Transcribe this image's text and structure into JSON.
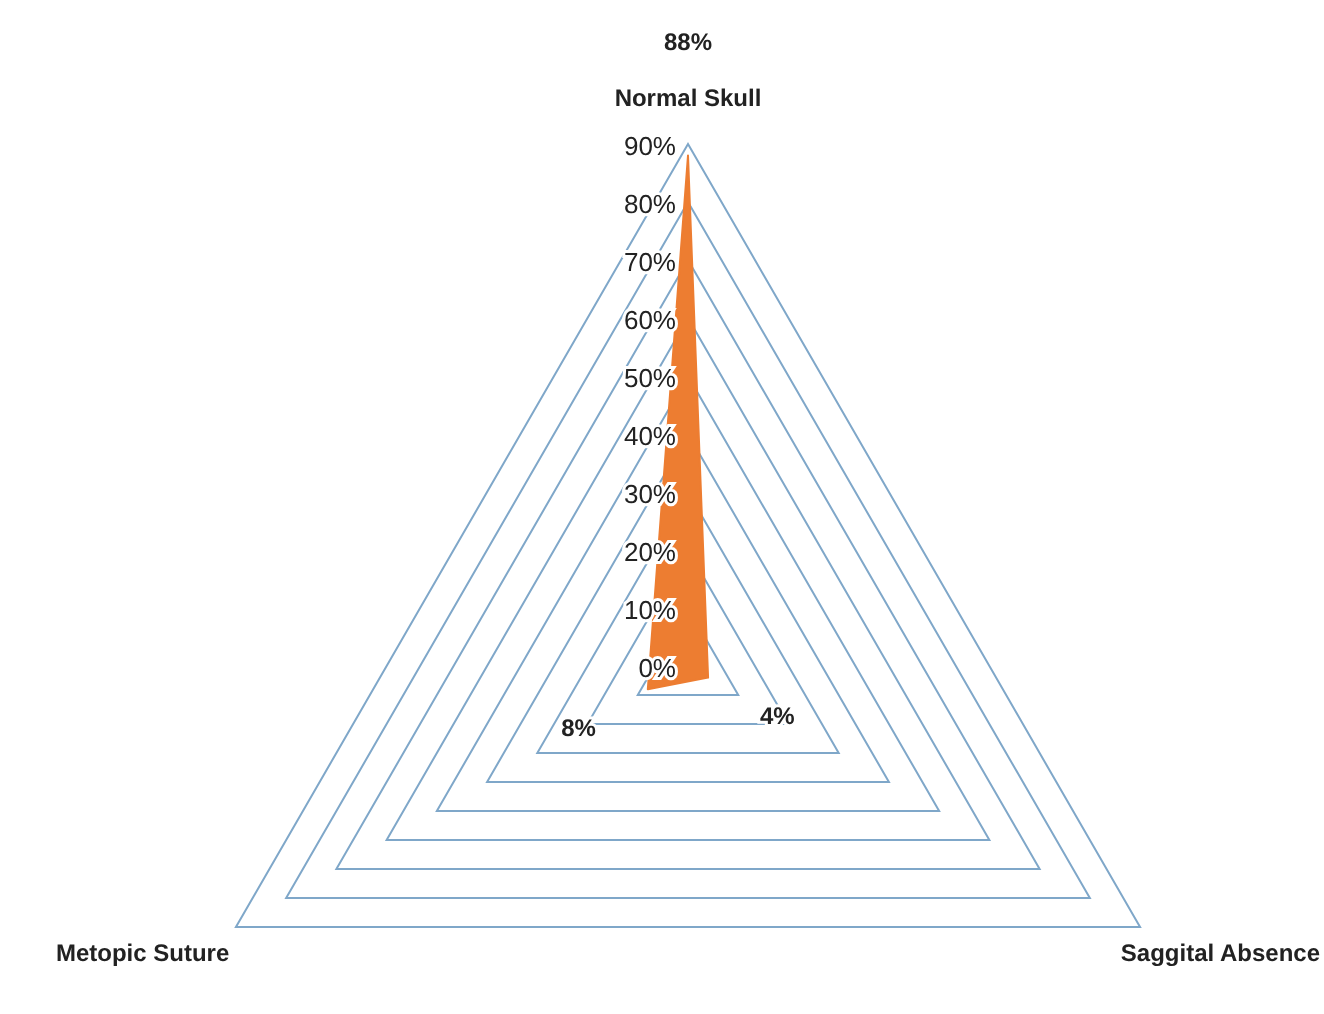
{
  "chart_data": {
    "type": "radar",
    "categories": [
      "Normal Skull",
      "Saggital Absence",
      "Metopic Suture"
    ],
    "series": [
      {
        "color": "#ed7d31",
        "values": [
          88,
          4,
          8
        ]
      }
    ],
    "ylim": [
      0,
      90
    ],
    "yticks": [
      {
        "value": 0,
        "label": "0%"
      },
      {
        "value": 10,
        "label": "10%"
      },
      {
        "value": 20,
        "label": "20%"
      },
      {
        "value": 30,
        "label": "30%"
      },
      {
        "value": 40,
        "label": "40%"
      },
      {
        "value": 50,
        "label": "50%"
      },
      {
        "value": 60,
        "label": "60%"
      },
      {
        "value": 70,
        "label": "70%"
      },
      {
        "value": 80,
        "label": "80%"
      },
      {
        "value": 90,
        "label": "90%"
      }
    ],
    "value_labels": [
      "88%",
      "4%",
      "8%"
    ],
    "grid": true
  }
}
